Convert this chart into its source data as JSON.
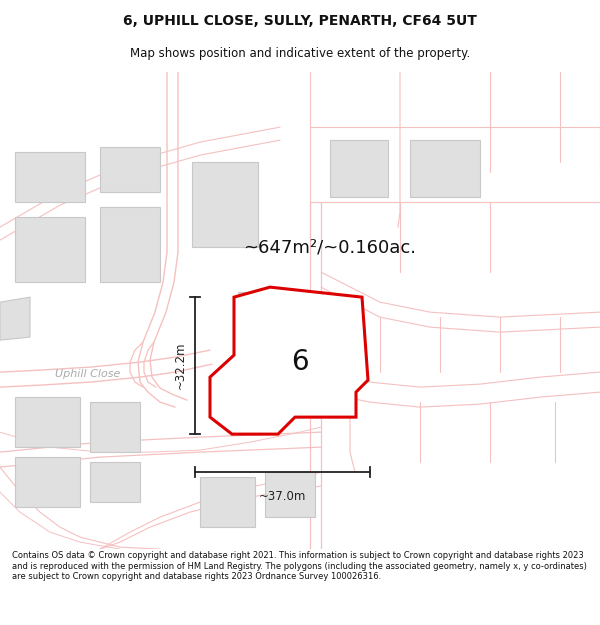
{
  "title_line1": "6, UPHILL CLOSE, SULLY, PENARTH, CF64 5UT",
  "title_line2": "Map shows position and indicative extent of the property.",
  "area_label": "~647m²/~0.160ac.",
  "dim_vertical": "~32.2m",
  "dim_horizontal": "~37.0m",
  "plot_number": "6",
  "street_label": "Uphill Close",
  "footer_text": "Contains OS data © Crown copyright and database right 2021. This information is subject to Crown copyright and database rights 2023 and is reproduced with the permission of HM Land Registry. The polygons (including the associated geometry, namely x, y co-ordinates) are subject to Crown copyright and database rights 2023 Ordnance Survey 100026316.",
  "map_bg": "#ffffff",
  "road_color": "#f5c0c0",
  "building_fill": "#e0e0e0",
  "building_edge": "#c8c8c8",
  "property_fill": "#ffffff",
  "property_edge": "#dd0000",
  "dim_line_color": "#222222",
  "text_color": "#111111",
  "street_text_color": "#aaaaaa"
}
